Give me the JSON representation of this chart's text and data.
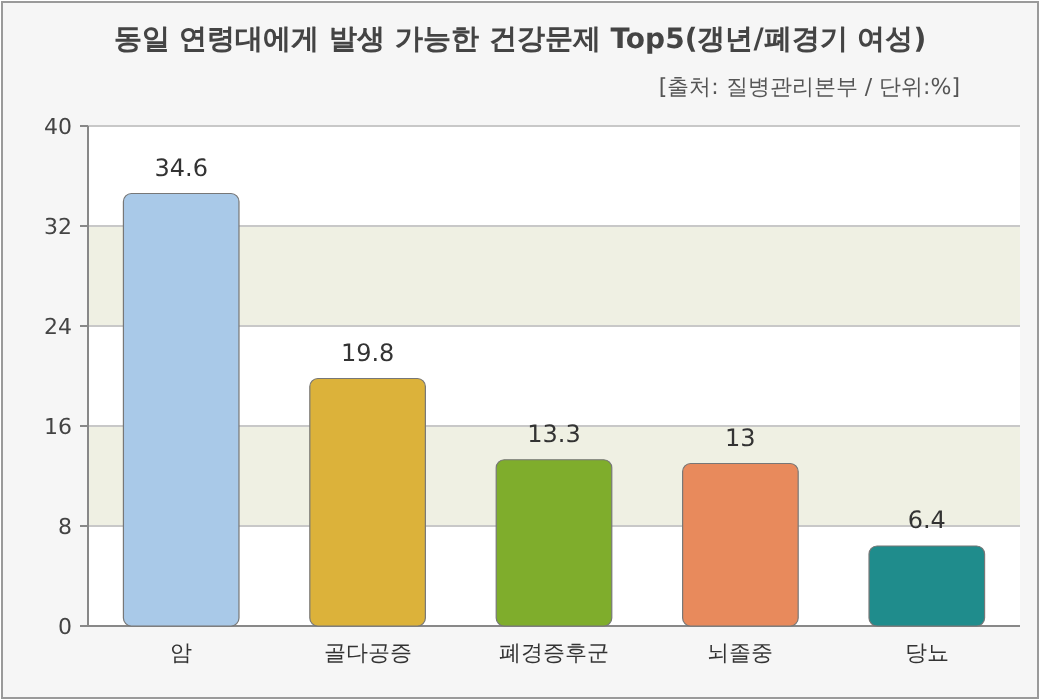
{
  "chart_data": {
    "type": "bar",
    "title": "동일 연령대에게 발생 가능한 건강문제 Top5(갱년/폐경기 여성)",
    "subtitle": "[출처: 질병관리본부 / 단위:%]",
    "categories": [
      "암",
      "골다공증",
      "폐경증후군",
      "뇌졸중",
      "당뇨"
    ],
    "values": [
      34.6,
      19.8,
      13.3,
      13,
      6.4
    ],
    "colors": [
      "#a9c9e8",
      "#dcb23a",
      "#7fad2c",
      "#e88a5c",
      "#1f8c8c"
    ],
    "ylim": [
      0,
      40
    ],
    "yticks": [
      0,
      8,
      16,
      24,
      32,
      40
    ],
    "grid": "y",
    "data_labels": true
  }
}
